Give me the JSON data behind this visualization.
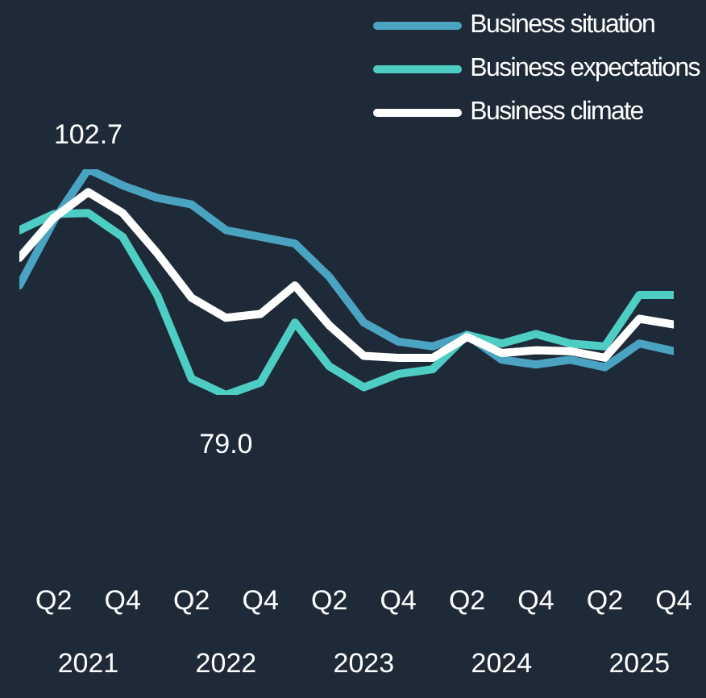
{
  "chart_data": {
    "type": "line",
    "categories": [
      null,
      "Q2",
      null,
      "Q4",
      null,
      "Q2",
      null,
      "Q4",
      null,
      "Q2",
      null,
      "Q4",
      null,
      "Q2",
      null,
      "Q4",
      null,
      "Q2",
      null,
      "Q4"
    ],
    "annotations": [
      "2021",
      "2022",
      "2023",
      "2024",
      "2025"
    ],
    "series": [
      {
        "name": "Business situation",
        "color": "#4aa3c0",
        "values": [
          90.5,
          97.3,
          102.7,
          101.0,
          99.7,
          99.0,
          96.3,
          95.6,
          94.9,
          91.4,
          86.6,
          84.6,
          84.1,
          85.3,
          82.7,
          82.2,
          82.7,
          81.9,
          84.4,
          83.6
        ],
        "value_labels": [
          null,
          null,
          "102.7",
          null,
          null,
          null,
          null,
          null,
          null,
          null,
          null,
          null,
          null,
          null,
          null,
          null,
          null,
          null,
          null,
          null
        ]
      },
      {
        "name": "Business expectations",
        "color": "#4ecdc4",
        "values": [
          96.3,
          98.0,
          98.1,
          95.6,
          89.5,
          80.7,
          79.0,
          80.3,
          86.6,
          82.0,
          79.8,
          81.2,
          81.7,
          85.3,
          84.4,
          85.4,
          84.4,
          84.1,
          89.5,
          89.5
        ],
        "value_labels": [
          null,
          null,
          null,
          null,
          null,
          null,
          "79.0",
          null,
          null,
          null,
          null,
          null,
          null,
          null,
          null,
          null,
          null,
          null,
          null,
          null
        ]
      },
      {
        "name": "Business climate",
        "color": "#ffffff",
        "values": [
          93.4,
          97.6,
          100.3,
          98.1,
          93.9,
          89.2,
          87.1,
          87.5,
          90.5,
          86.3,
          83.1,
          82.9,
          82.9,
          85.1,
          83.4,
          83.7,
          83.6,
          82.9,
          87.0,
          86.4
        ]
      }
    ],
    "tick_labels": "x",
    "legend": "top right",
    "marker": "none",
    "line_style": "solid"
  }
}
